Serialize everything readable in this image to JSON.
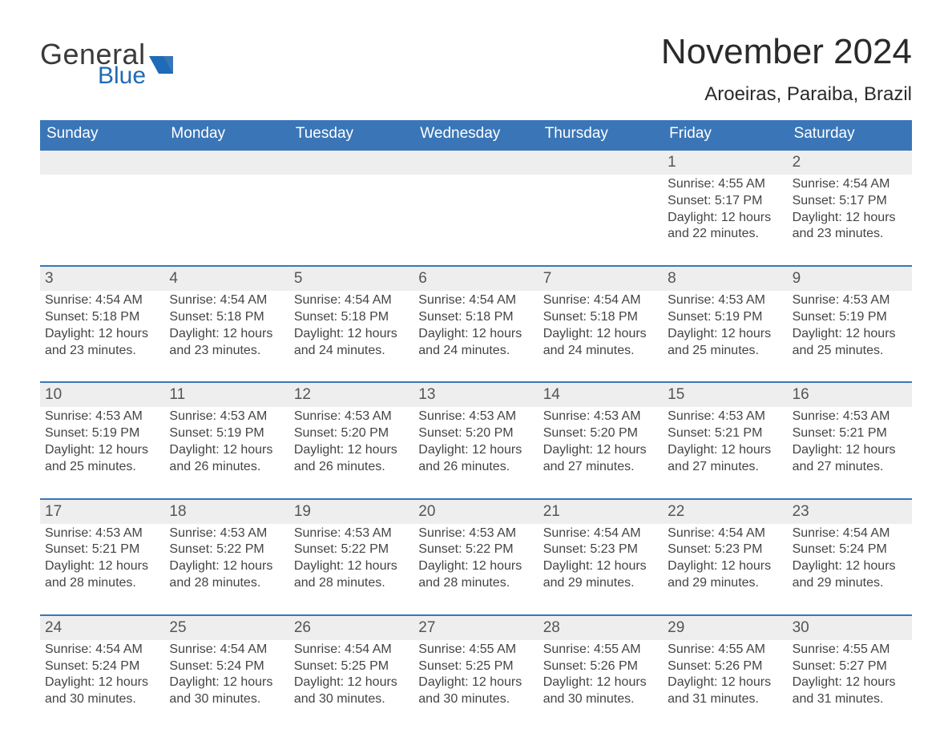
{
  "colors": {
    "header_blue": "#3a76b7",
    "accent_blue": "#1f6bb7",
    "row_grey": "#eeeeee",
    "text": "#333333",
    "background": "#ffffff"
  },
  "logo": {
    "line1": "General",
    "line2": "Blue"
  },
  "header": {
    "month_title": "November 2024",
    "location": "Aroeiras, Paraiba, Brazil"
  },
  "weekdays": [
    "Sunday",
    "Monday",
    "Tuesday",
    "Wednesday",
    "Thursday",
    "Friday",
    "Saturday"
  ],
  "labels": {
    "sunrise_prefix": "Sunrise: ",
    "sunset_prefix": "Sunset: ",
    "daylight_prefix": "Daylight: "
  },
  "weeks": [
    [
      null,
      null,
      null,
      null,
      null,
      {
        "day": "1",
        "sunrise": "4:55 AM",
        "sunset": "5:17 PM",
        "daylight": "12 hours and 22 minutes."
      },
      {
        "day": "2",
        "sunrise": "4:54 AM",
        "sunset": "5:17 PM",
        "daylight": "12 hours and 23 minutes."
      }
    ],
    [
      {
        "day": "3",
        "sunrise": "4:54 AM",
        "sunset": "5:18 PM",
        "daylight": "12 hours and 23 minutes."
      },
      {
        "day": "4",
        "sunrise": "4:54 AM",
        "sunset": "5:18 PM",
        "daylight": "12 hours and 23 minutes."
      },
      {
        "day": "5",
        "sunrise": "4:54 AM",
        "sunset": "5:18 PM",
        "daylight": "12 hours and 24 minutes."
      },
      {
        "day": "6",
        "sunrise": "4:54 AM",
        "sunset": "5:18 PM",
        "daylight": "12 hours and 24 minutes."
      },
      {
        "day": "7",
        "sunrise": "4:54 AM",
        "sunset": "5:18 PM",
        "daylight": "12 hours and 24 minutes."
      },
      {
        "day": "8",
        "sunrise": "4:53 AM",
        "sunset": "5:19 PM",
        "daylight": "12 hours and 25 minutes."
      },
      {
        "day": "9",
        "sunrise": "4:53 AM",
        "sunset": "5:19 PM",
        "daylight": "12 hours and 25 minutes."
      }
    ],
    [
      {
        "day": "10",
        "sunrise": "4:53 AM",
        "sunset": "5:19 PM",
        "daylight": "12 hours and 25 minutes."
      },
      {
        "day": "11",
        "sunrise": "4:53 AM",
        "sunset": "5:19 PM",
        "daylight": "12 hours and 26 minutes."
      },
      {
        "day": "12",
        "sunrise": "4:53 AM",
        "sunset": "5:20 PM",
        "daylight": "12 hours and 26 minutes."
      },
      {
        "day": "13",
        "sunrise": "4:53 AM",
        "sunset": "5:20 PM",
        "daylight": "12 hours and 26 minutes."
      },
      {
        "day": "14",
        "sunrise": "4:53 AM",
        "sunset": "5:20 PM",
        "daylight": "12 hours and 27 minutes."
      },
      {
        "day": "15",
        "sunrise": "4:53 AM",
        "sunset": "5:21 PM",
        "daylight": "12 hours and 27 minutes."
      },
      {
        "day": "16",
        "sunrise": "4:53 AM",
        "sunset": "5:21 PM",
        "daylight": "12 hours and 27 minutes."
      }
    ],
    [
      {
        "day": "17",
        "sunrise": "4:53 AM",
        "sunset": "5:21 PM",
        "daylight": "12 hours and 28 minutes."
      },
      {
        "day": "18",
        "sunrise": "4:53 AM",
        "sunset": "5:22 PM",
        "daylight": "12 hours and 28 minutes."
      },
      {
        "day": "19",
        "sunrise": "4:53 AM",
        "sunset": "5:22 PM",
        "daylight": "12 hours and 28 minutes."
      },
      {
        "day": "20",
        "sunrise": "4:53 AM",
        "sunset": "5:22 PM",
        "daylight": "12 hours and 28 minutes."
      },
      {
        "day": "21",
        "sunrise": "4:54 AM",
        "sunset": "5:23 PM",
        "daylight": "12 hours and 29 minutes."
      },
      {
        "day": "22",
        "sunrise": "4:54 AM",
        "sunset": "5:23 PM",
        "daylight": "12 hours and 29 minutes."
      },
      {
        "day": "23",
        "sunrise": "4:54 AM",
        "sunset": "5:24 PM",
        "daylight": "12 hours and 29 minutes."
      }
    ],
    [
      {
        "day": "24",
        "sunrise": "4:54 AM",
        "sunset": "5:24 PM",
        "daylight": "12 hours and 30 minutes."
      },
      {
        "day": "25",
        "sunrise": "4:54 AM",
        "sunset": "5:24 PM",
        "daylight": "12 hours and 30 minutes."
      },
      {
        "day": "26",
        "sunrise": "4:54 AM",
        "sunset": "5:25 PM",
        "daylight": "12 hours and 30 minutes."
      },
      {
        "day": "27",
        "sunrise": "4:55 AM",
        "sunset": "5:25 PM",
        "daylight": "12 hours and 30 minutes."
      },
      {
        "day": "28",
        "sunrise": "4:55 AM",
        "sunset": "5:26 PM",
        "daylight": "12 hours and 30 minutes."
      },
      {
        "day": "29",
        "sunrise": "4:55 AM",
        "sunset": "5:26 PM",
        "daylight": "12 hours and 31 minutes."
      },
      {
        "day": "30",
        "sunrise": "4:55 AM",
        "sunset": "5:27 PM",
        "daylight": "12 hours and 31 minutes."
      }
    ]
  ]
}
